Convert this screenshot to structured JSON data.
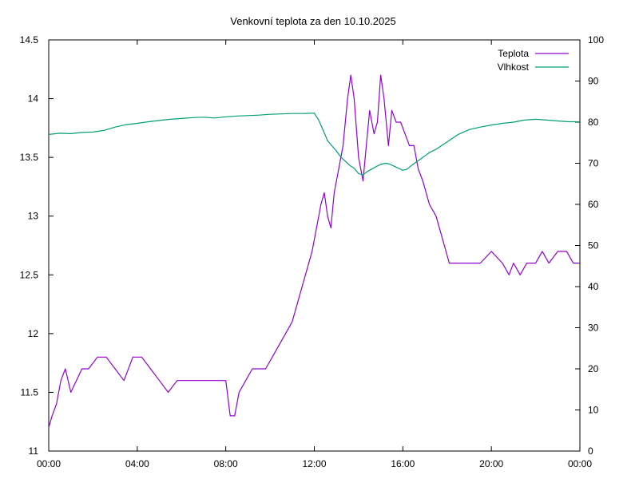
{
  "chart_data": {
    "type": "line",
    "title": "Venkovní teplota za den 10.10.2025",
    "xlabel": "",
    "ylabel": "",
    "y2label": "",
    "x_ticks": [
      "00:00",
      "04:00",
      "08:00",
      "12:00",
      "16:00",
      "20:00",
      "00:00"
    ],
    "xlim_hours": [
      0,
      24
    ],
    "ylim": [
      11,
      14.5
    ],
    "y_ticks": [
      "11",
      "11.5",
      "12",
      "12.5",
      "13",
      "13.5",
      "14",
      "14.5"
    ],
    "y2lim": [
      0,
      100
    ],
    "y2_ticks": [
      "0",
      "10",
      "20",
      "30",
      "40",
      "50",
      "60",
      "70",
      "80",
      "90",
      "100"
    ],
    "grid": false,
    "legend_position": "top-right",
    "series": [
      {
        "name": "Teplota",
        "axis": "left",
        "color": "#9400d3",
        "x": [
          0.0,
          0.15,
          0.35,
          0.55,
          0.75,
          1.0,
          1.25,
          1.5,
          1.8,
          2.2,
          2.6,
          3.0,
          3.4,
          3.8,
          4.2,
          4.6,
          5.0,
          5.4,
          5.8,
          6.2,
          6.6,
          7.0,
          7.4,
          7.8,
          8.0,
          8.2,
          8.4,
          8.6,
          8.9,
          9.2,
          9.5,
          9.8,
          10.1,
          10.4,
          10.7,
          11.0,
          11.3,
          11.6,
          11.9,
          12.1,
          12.3,
          12.45,
          12.6,
          12.75,
          12.9,
          13.1,
          13.3,
          13.5,
          13.65,
          13.8,
          14.0,
          14.2,
          14.35,
          14.5,
          14.7,
          14.85,
          15.0,
          15.15,
          15.35,
          15.5,
          15.7,
          15.9,
          16.1,
          16.3,
          16.5,
          16.7,
          16.9,
          17.2,
          17.5,
          17.8,
          18.1,
          18.4,
          18.7,
          19.0,
          19.5,
          20.0,
          20.5,
          20.8,
          21.0,
          21.3,
          21.6,
          22.0,
          22.3,
          22.6,
          23.0,
          23.4,
          23.7,
          24.0
        ],
        "values": [
          11.2,
          11.3,
          11.4,
          11.6,
          11.7,
          11.5,
          11.6,
          11.7,
          11.7,
          11.8,
          11.8,
          11.7,
          11.6,
          11.8,
          11.8,
          11.7,
          11.6,
          11.5,
          11.6,
          11.6,
          11.6,
          11.6,
          11.6,
          11.6,
          11.6,
          11.3,
          11.3,
          11.5,
          11.6,
          11.7,
          11.7,
          11.7,
          11.8,
          11.9,
          12.0,
          12.1,
          12.3,
          12.5,
          12.7,
          12.9,
          13.1,
          13.2,
          13.0,
          12.9,
          13.2,
          13.4,
          13.6,
          14.0,
          14.2,
          14.0,
          13.5,
          13.3,
          13.6,
          13.9,
          13.7,
          13.8,
          14.2,
          14.0,
          13.6,
          13.9,
          13.8,
          13.8,
          13.7,
          13.6,
          13.6,
          13.4,
          13.3,
          13.1,
          13.0,
          12.8,
          12.6,
          12.6,
          12.6,
          12.6,
          12.6,
          12.7,
          12.6,
          12.5,
          12.6,
          12.5,
          12.6,
          12.6,
          12.7,
          12.6,
          12.7,
          12.7,
          12.6,
          12.6
        ]
      },
      {
        "name": "Vlhkost",
        "axis": "right",
        "color": "#009e73",
        "x": [
          0.0,
          0.5,
          1.0,
          1.5,
          2.0,
          2.5,
          3.0,
          3.5,
          4.0,
          4.5,
          5.0,
          5.5,
          6.0,
          6.5,
          7.0,
          7.5,
          8.0,
          8.5,
          9.0,
          9.5,
          10.0,
          10.5,
          11.0,
          11.5,
          12.0,
          12.2,
          12.4,
          12.6,
          12.8,
          13.0,
          13.2,
          13.4,
          13.6,
          13.8,
          14.0,
          14.2,
          14.4,
          14.6,
          14.8,
          15.0,
          15.2,
          15.4,
          15.6,
          15.8,
          16.0,
          16.2,
          16.4,
          16.6,
          16.8,
          17.0,
          17.2,
          17.5,
          18.0,
          18.5,
          19.0,
          19.5,
          20.0,
          20.5,
          21.0,
          21.5,
          22.0,
          22.5,
          23.0,
          23.5,
          24.0
        ],
        "values": [
          77,
          77.3,
          77.2,
          77.5,
          77.6,
          78,
          78.8,
          79.4,
          79.7,
          80.1,
          80.4,
          80.7,
          80.9,
          81.1,
          81.2,
          81.0,
          81.3,
          81.5,
          81.6,
          81.7,
          81.9,
          82.0,
          82.1,
          82.1,
          82.2,
          80.5,
          78,
          75.5,
          74.2,
          73,
          71.5,
          70.5,
          69.5,
          68.8,
          67.5,
          67.2,
          68,
          68.6,
          69.2,
          69.7,
          70,
          69.8,
          69.3,
          68.8,
          68.3,
          68.6,
          69.5,
          70.3,
          71,
          71.8,
          72.6,
          73.4,
          75.2,
          77.0,
          78.2,
          78.8,
          79.3,
          79.7,
          80,
          80.5,
          80.7,
          80.5,
          80.3,
          80.1,
          80.1
        ]
      }
    ]
  }
}
